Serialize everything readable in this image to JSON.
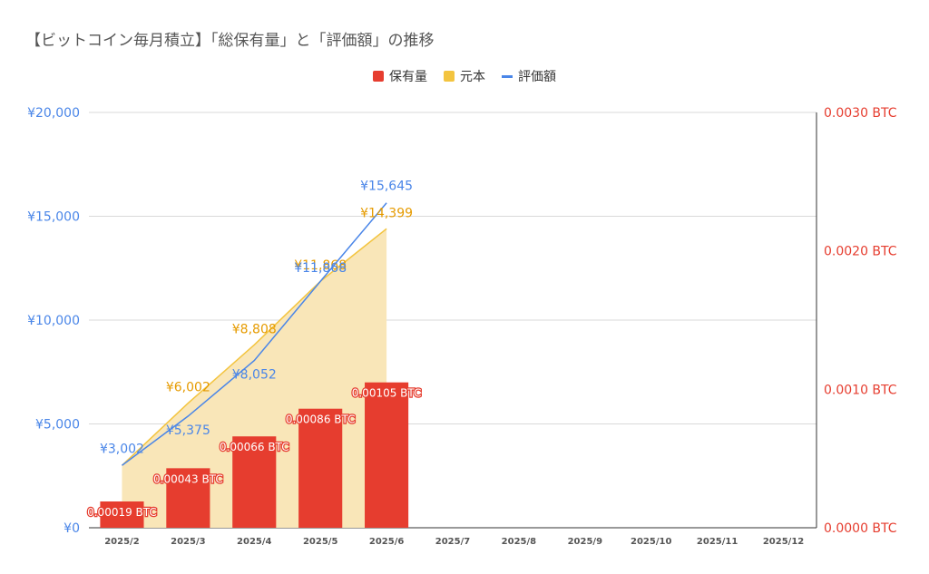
{
  "title": "【ビットコイン毎月積立】「総保有量」と「評価額」の推移",
  "legend": {
    "holdings": "保有量",
    "principal": "元本",
    "valuation": "評価額"
  },
  "colors": {
    "holdings": "#e63d2f",
    "principal": "#f3c43f",
    "principal_fill": "#f9e6b8",
    "valuation": "#4a86e8",
    "left_axis": "#4a86e8",
    "right_axis": "#e63d2f",
    "grid": "#d9d9d9"
  },
  "chart_data": {
    "type": "combo",
    "categories": [
      "2025/2",
      "2025/3",
      "2025/4",
      "2025/5",
      "2025/6",
      "2025/7",
      "2025/8",
      "2025/9",
      "2025/10",
      "2025/11",
      "2025/12"
    ],
    "series": [
      {
        "name": "保有量",
        "kind": "bar",
        "axis": "right",
        "values": [
          0.00019,
          0.00043,
          0.00066,
          0.00086,
          0.00105,
          null,
          null,
          null,
          null,
          null,
          null
        ],
        "labels": [
          "0.00019 BTC",
          "0.00043 BTC",
          "0.00066 BTC",
          "0.00086 BTC",
          "0.00105 BTC"
        ]
      },
      {
        "name": "元本",
        "kind": "area",
        "axis": "left",
        "values": [
          3002,
          6002,
          8808,
          11868,
          14399,
          null,
          null,
          null,
          null,
          null,
          null
        ],
        "labels": [
          "",
          "¥6,002",
          "¥8,808",
          "¥11,868",
          "¥14,399"
        ]
      },
      {
        "name": "評価額",
        "kind": "line",
        "axis": "left",
        "values": [
          3002,
          5375,
          8052,
          11868,
          15645,
          null,
          null,
          null,
          null,
          null,
          null
        ],
        "labels": [
          "¥3,002",
          "¥5,375",
          "¥8,052",
          "¥11,868",
          "¥15,645"
        ]
      }
    ],
    "left_axis": {
      "min": 0,
      "max": 20000,
      "ticks": [
        0,
        5000,
        10000,
        15000,
        20000
      ],
      "tick_labels": [
        "¥0",
        "¥5,000",
        "¥10,000",
        "¥15,000",
        "¥20,000"
      ]
    },
    "right_axis": {
      "min": 0,
      "max": 0.003,
      "ticks": [
        0,
        0.001,
        0.002,
        0.003
      ],
      "tick_labels": [
        "0.0000 BTC",
        "0.0010 BTC",
        "0.0020 BTC",
        "0.0030 BTC"
      ]
    },
    "grid": true,
    "legend_position": "top"
  }
}
